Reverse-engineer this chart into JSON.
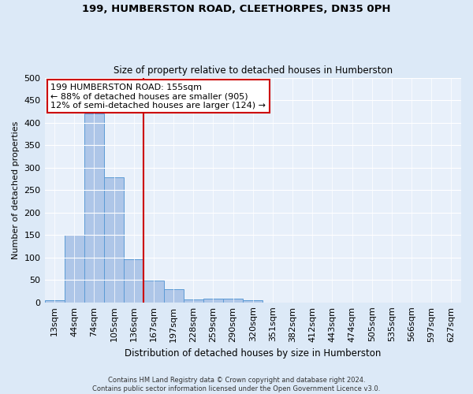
{
  "title": "199, HUMBERSTON ROAD, CLEETHORPES, DN35 0PH",
  "subtitle": "Size of property relative to detached houses in Humberston",
  "xlabel": "Distribution of detached houses by size in Humberston",
  "ylabel": "Number of detached properties",
  "bar_labels": [
    "13sqm",
    "44sqm",
    "74sqm",
    "105sqm",
    "136sqm",
    "167sqm",
    "197sqm",
    "228sqm",
    "259sqm",
    "290sqm",
    "320sqm",
    "351sqm",
    "382sqm",
    "412sqm",
    "443sqm",
    "474sqm",
    "505sqm",
    "535sqm",
    "566sqm",
    "597sqm",
    "627sqm"
  ],
  "bar_values": [
    5,
    150,
    420,
    278,
    96,
    49,
    30,
    7,
    9,
    8,
    5,
    0,
    0,
    0,
    0,
    0,
    0,
    0,
    0,
    0,
    0
  ],
  "bar_color": "#aec6e8",
  "bar_edgecolor": "#5b9bd5",
  "vline_color": "#cc0000",
  "ylim": [
    0,
    500
  ],
  "yticks": [
    0,
    50,
    100,
    150,
    200,
    250,
    300,
    350,
    400,
    450,
    500
  ],
  "annotation_text": "199 HUMBERSTON ROAD: 155sqm\n← 88% of detached houses are smaller (905)\n12% of semi-detached houses are larger (124) →",
  "annotation_box_color": "#ffffff",
  "annotation_box_edgecolor": "#cc0000",
  "footer_line1": "Contains HM Land Registry data © Crown copyright and database right 2024.",
  "footer_line2": "Contains public sector information licensed under the Open Government Licence v3.0.",
  "bg_color": "#dce9f7",
  "plot_bg_color": "#e8f0fa",
  "grid_color": "#ffffff"
}
